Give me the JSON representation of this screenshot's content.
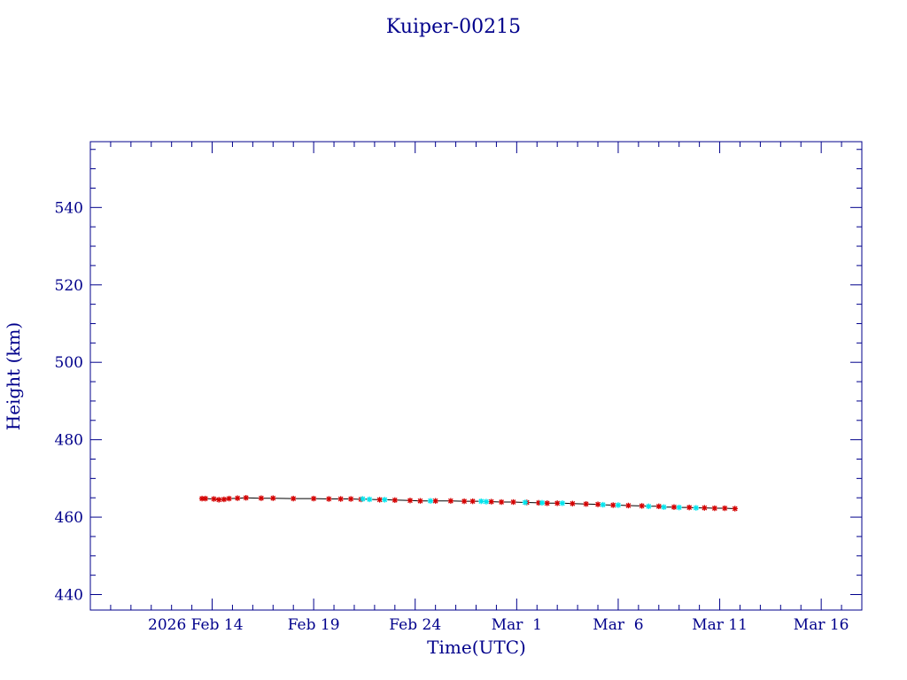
{
  "chart_data": {
    "type": "scatter",
    "title": "Kuiper-00215",
    "xlabel": "Time(UTC)",
    "ylabel": "Height (km)",
    "x_unit": "date (2026)",
    "xlim": [
      "2026-02-08",
      "2026-03-18"
    ],
    "ylim": [
      436,
      557
    ],
    "x_ticks": [
      {
        "date": "2026-02-14",
        "label": "2026 Feb 14"
      },
      {
        "date": "2026-02-19",
        "label": "Feb 19"
      },
      {
        "date": "2026-02-24",
        "label": "Feb 24"
      },
      {
        "date": "2026-03-01",
        "label": "Mar  1"
      },
      {
        "date": "2026-03-06",
        "label": "Mar  6"
      },
      {
        "date": "2026-03-11",
        "label": "Mar 11"
      },
      {
        "date": "2026-03-16",
        "label": "Mar 16"
      }
    ],
    "y_ticks": [
      440,
      460,
      480,
      500,
      520,
      540
    ],
    "grid": false,
    "colors": {
      "axes": "#00008b",
      "line": "#000000",
      "red_marker": "#d40000",
      "cyan_marker": "#00e5ee"
    },
    "series": [
      {
        "marker": "star",
        "color": "#d40000",
        "points": [
          [
            "2026-02-13T12:00",
            "464.8"
          ],
          [
            "2026-02-13T16:00",
            "464.8"
          ],
          [
            "2026-02-14T02:00",
            "464.7"
          ],
          [
            "2026-02-14T08:00",
            "464.5"
          ],
          [
            "2026-02-14T14:00",
            "464.6"
          ],
          [
            "2026-02-14T20:00",
            "464.8"
          ],
          [
            "2026-02-15T06:00",
            "464.9"
          ],
          [
            "2026-02-15T16:00",
            "465.0"
          ],
          [
            "2026-02-16T10:00",
            "464.9"
          ],
          [
            "2026-02-17T00:00",
            "464.9"
          ],
          [
            "2026-02-18T00:00",
            "464.8"
          ],
          [
            "2026-02-19T00:00",
            "464.8"
          ],
          [
            "2026-02-19T18:00",
            "464.7"
          ],
          [
            "2026-02-20T08:00",
            "464.7"
          ],
          [
            "2026-02-20T20:00",
            "464.7"
          ],
          [
            "2026-02-21T08:00",
            "464.6"
          ],
          [
            "2026-02-22T06:00",
            "464.5"
          ],
          [
            "2026-02-23T00:00",
            "464.4"
          ],
          [
            "2026-02-23T18:00",
            "464.3"
          ],
          [
            "2026-02-24T06:00",
            "464.2"
          ],
          [
            "2026-02-25T00:00",
            "464.2"
          ],
          [
            "2026-02-25T18:00",
            "464.2"
          ],
          [
            "2026-02-26T10:00",
            "464.1"
          ],
          [
            "2026-02-26T20:00",
            "464.1"
          ],
          [
            "2026-02-27T18:00",
            "464.0"
          ],
          [
            "2026-02-28T06:00",
            "463.9"
          ],
          [
            "2026-02-28T20:00",
            "463.9"
          ],
          [
            "2026-03-01T12:00",
            "463.8"
          ],
          [
            "2026-03-02T02:00",
            "463.7"
          ],
          [
            "2026-03-02T12:00",
            "463.6"
          ],
          [
            "2026-03-03T00:00",
            "463.6"
          ],
          [
            "2026-03-03T18:00",
            "463.5"
          ],
          [
            "2026-03-04T10:00",
            "463.4"
          ],
          [
            "2026-03-05T00:00",
            "463.3"
          ],
          [
            "2026-03-05T18:00",
            "463.1"
          ],
          [
            "2026-03-06T12:00",
            "463.0"
          ],
          [
            "2026-03-07T04:00",
            "462.9"
          ],
          [
            "2026-03-08T00:00",
            "462.8"
          ],
          [
            "2026-03-08T18:00",
            "462.6"
          ],
          [
            "2026-03-09T12:00",
            "462.5"
          ],
          [
            "2026-03-10T06:00",
            "462.4"
          ],
          [
            "2026-03-10T18:00",
            "462.3"
          ],
          [
            "2026-03-11T06:00",
            "462.3"
          ],
          [
            "2026-03-11T18:00",
            "462.2"
          ]
        ]
      },
      {
        "marker": "star",
        "color": "#00e5ee",
        "points": [
          [
            "2026-02-21T10:00",
            "464.7"
          ],
          [
            "2026-02-21T18:00",
            "464.6"
          ],
          [
            "2026-02-22T12:00",
            "464.5"
          ],
          [
            "2026-02-24T18:00",
            "464.2"
          ],
          [
            "2026-02-27T06:00",
            "464.1"
          ],
          [
            "2026-02-27T12:00",
            "464.0"
          ],
          [
            "2026-03-01T10:00",
            "463.8"
          ],
          [
            "2026-03-02T06:00",
            "463.7"
          ],
          [
            "2026-03-03T06:00",
            "463.6"
          ],
          [
            "2026-03-05T06:00",
            "463.2"
          ],
          [
            "2026-03-06T00:00",
            "463.1"
          ],
          [
            "2026-03-07T12:00",
            "462.8"
          ],
          [
            "2026-03-08T06:00",
            "462.6"
          ],
          [
            "2026-03-09T00:00",
            "462.5"
          ],
          [
            "2026-03-09T20:00",
            "462.4"
          ]
        ]
      }
    ]
  }
}
